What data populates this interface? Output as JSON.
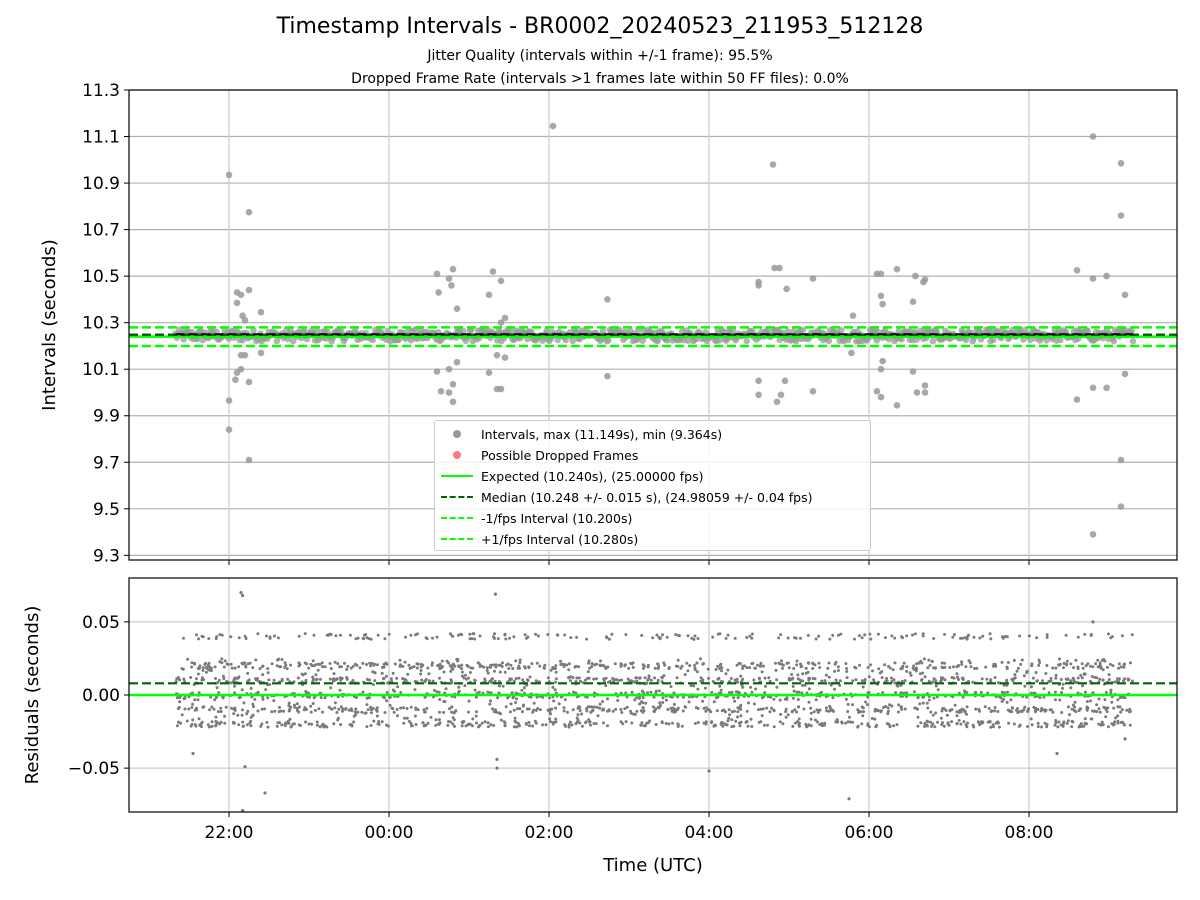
{
  "title": "Timestamp Intervals - BR0002_20240523_211953_512128",
  "subtitle_1": "Jitter Quality (intervals within +/-1 frame): 95.5%",
  "subtitle_2": "Dropped Frame Rate (intervals >1 frames late within 50 FF files): 0.0%",
  "colors": {
    "intervals": "#999999",
    "residuals": "#7a7a7a",
    "dropped": "#ff4040",
    "expected": "#00ff00",
    "median": "#006400",
    "bounds": "#00ff00",
    "mean": "#000000"
  },
  "chart_data": [
    {
      "type": "scatter",
      "ylabel": "Intervals (seconds)",
      "ylim": [
        9.28,
        11.3
      ],
      "yticks": [
        "9.3",
        "9.5",
        "9.7",
        "9.9",
        "10.1",
        "10.3",
        "10.5",
        "10.7",
        "10.9",
        "11.1",
        "11.3"
      ],
      "xlim_hours": [
        20.75,
        33.85
      ],
      "x_range_hours": [
        21.33,
        33.3
      ],
      "grid": true,
      "legend_position": "lower center",
      "legend": [
        "Intervals, max (11.149s), min (9.364s)",
        "Possible Dropped Frames",
        "Expected (10.240s), (25.00000 fps)",
        "Median (10.248 +/- 0.015 s), (24.98059 +/- 0.04 fps)",
        "-1/fps Interval (10.200s)",
        "+1/fps Interval (10.280s)"
      ],
      "reference_lines": {
        "expected": 10.24,
        "median": 10.248,
        "minus_1fps": 10.2,
        "plus_1fps": 10.28
      },
      "outliers": [
        {
          "x": 22.0,
          "y": 10.935
        },
        {
          "x": 22.25,
          "y": 10.775
        },
        {
          "x": 22.1,
          "y": 10.43
        },
        {
          "x": 22.25,
          "y": 10.44
        },
        {
          "x": 22.15,
          "y": 10.42
        },
        {
          "x": 22.1,
          "y": 10.385
        },
        {
          "x": 22.4,
          "y": 10.345
        },
        {
          "x": 22.17,
          "y": 10.33
        },
        {
          "x": 22.2,
          "y": 10.31
        },
        {
          "x": 22.15,
          "y": 10.16
        },
        {
          "x": 22.2,
          "y": 10.16
        },
        {
          "x": 22.4,
          "y": 10.17
        },
        {
          "x": 22.15,
          "y": 10.1
        },
        {
          "x": 22.1,
          "y": 10.085
        },
        {
          "x": 22.08,
          "y": 10.055
        },
        {
          "x": 22.25,
          "y": 10.045
        },
        {
          "x": 22.0,
          "y": 9.965
        },
        {
          "x": 22.0,
          "y": 9.84
        },
        {
          "x": 22.25,
          "y": 9.71
        },
        {
          "x": 24.6,
          "y": 10.51
        },
        {
          "x": 24.75,
          "y": 10.49
        },
        {
          "x": 24.8,
          "y": 10.53
        },
        {
          "x": 24.62,
          "y": 10.43
        },
        {
          "x": 24.78,
          "y": 10.46
        },
        {
          "x": 24.85,
          "y": 10.36
        },
        {
          "x": 24.85,
          "y": 10.13
        },
        {
          "x": 24.6,
          "y": 10.09
        },
        {
          "x": 24.75,
          "y": 10.1
        },
        {
          "x": 24.8,
          "y": 10.035
        },
        {
          "x": 24.65,
          "y": 10.005
        },
        {
          "x": 24.75,
          "y": 10.0
        },
        {
          "x": 24.8,
          "y": 9.96
        },
        {
          "x": 25.3,
          "y": 10.52
        },
        {
          "x": 25.4,
          "y": 10.48
        },
        {
          "x": 25.25,
          "y": 10.42
        },
        {
          "x": 25.45,
          "y": 10.32
        },
        {
          "x": 25.4,
          "y": 10.3
        },
        {
          "x": 25.35,
          "y": 10.16
        },
        {
          "x": 25.45,
          "y": 10.15
        },
        {
          "x": 25.25,
          "y": 10.085
        },
        {
          "x": 25.35,
          "y": 10.015
        },
        {
          "x": 25.4,
          "y": 10.015
        },
        {
          "x": 26.05,
          "y": 11.145
        },
        {
          "x": 26.73,
          "y": 10.4
        },
        {
          "x": 26.73,
          "y": 10.07
        },
        {
          "x": 28.8,
          "y": 10.98
        },
        {
          "x": 28.82,
          "y": 10.535
        },
        {
          "x": 28.88,
          "y": 10.535
        },
        {
          "x": 28.62,
          "y": 10.475
        },
        {
          "x": 28.62,
          "y": 10.46
        },
        {
          "x": 28.97,
          "y": 10.445
        },
        {
          "x": 29.3,
          "y": 10.49
        },
        {
          "x": 28.62,
          "y": 10.05
        },
        {
          "x": 28.95,
          "y": 10.05
        },
        {
          "x": 28.62,
          "y": 9.99
        },
        {
          "x": 28.9,
          "y": 9.99
        },
        {
          "x": 28.85,
          "y": 9.96
        },
        {
          "x": 29.3,
          "y": 10.005
        },
        {
          "x": 29.8,
          "y": 10.33
        },
        {
          "x": 29.78,
          "y": 10.17
        },
        {
          "x": 30.1,
          "y": 10.51
        },
        {
          "x": 30.15,
          "y": 10.51
        },
        {
          "x": 30.35,
          "y": 10.53
        },
        {
          "x": 30.58,
          "y": 10.5
        },
        {
          "x": 30.7,
          "y": 10.485
        },
        {
          "x": 30.68,
          "y": 10.475
        },
        {
          "x": 30.15,
          "y": 10.415
        },
        {
          "x": 30.17,
          "y": 10.38
        },
        {
          "x": 30.55,
          "y": 10.39
        },
        {
          "x": 30.17,
          "y": 10.135
        },
        {
          "x": 30.15,
          "y": 10.1
        },
        {
          "x": 30.55,
          "y": 10.09
        },
        {
          "x": 30.7,
          "y": 10.03
        },
        {
          "x": 30.1,
          "y": 10.005
        },
        {
          "x": 30.15,
          "y": 9.98
        },
        {
          "x": 30.35,
          "y": 9.945
        },
        {
          "x": 30.6,
          "y": 10.0
        },
        {
          "x": 30.7,
          "y": 10.0
        },
        {
          "x": 32.8,
          "y": 11.1
        },
        {
          "x": 33.15,
          "y": 10.985
        },
        {
          "x": 33.15,
          "y": 10.76
        },
        {
          "x": 32.6,
          "y": 10.525
        },
        {
          "x": 32.8,
          "y": 10.49
        },
        {
          "x": 32.97,
          "y": 10.5
        },
        {
          "x": 33.2,
          "y": 10.42
        },
        {
          "x": 33.2,
          "y": 10.08
        },
        {
          "x": 32.8,
          "y": 10.02
        },
        {
          "x": 32.97,
          "y": 10.02
        },
        {
          "x": 32.6,
          "y": 9.97
        },
        {
          "x": 33.15,
          "y": 9.71
        },
        {
          "x": 33.15,
          "y": 9.51
        },
        {
          "x": 32.8,
          "y": 9.39
        }
      ]
    },
    {
      "type": "scatter",
      "ylabel": "Residuals (seconds)",
      "xlabel": "Time (UTC)",
      "ylim": [
        -0.08,
        0.08
      ],
      "yticks": [
        "0.05",
        "0.00",
        "−0.05"
      ],
      "xticks": [
        "22:00",
        "00:00",
        "02:00",
        "04:00",
        "06:00",
        "08:00"
      ],
      "xtick_hours": [
        22,
        24,
        26,
        28,
        30,
        32
      ],
      "grid": true,
      "reference_lines": {
        "expected": 0.0,
        "median": 0.008
      },
      "residual_levels": [
        -0.02,
        -0.01,
        0.0,
        0.01,
        0.02,
        0.04
      ],
      "outliers": [
        {
          "x": 22.15,
          "y": 0.07
        },
        {
          "x": 22.17,
          "y": 0.068
        },
        {
          "x": 25.33,
          "y": 0.069
        },
        {
          "x": 22.2,
          "y": -0.049
        },
        {
          "x": 22.45,
          "y": -0.067
        },
        {
          "x": 22.17,
          "y": -0.079
        },
        {
          "x": 25.35,
          "y": -0.044
        },
        {
          "x": 25.35,
          "y": -0.05
        },
        {
          "x": 28.0,
          "y": -0.052
        },
        {
          "x": 29.75,
          "y": -0.071
        },
        {
          "x": 32.8,
          "y": 0.05
        },
        {
          "x": 33.2,
          "y": -0.03
        },
        {
          "x": 21.55,
          "y": -0.04
        },
        {
          "x": 32.35,
          "y": -0.04
        }
      ]
    }
  ]
}
